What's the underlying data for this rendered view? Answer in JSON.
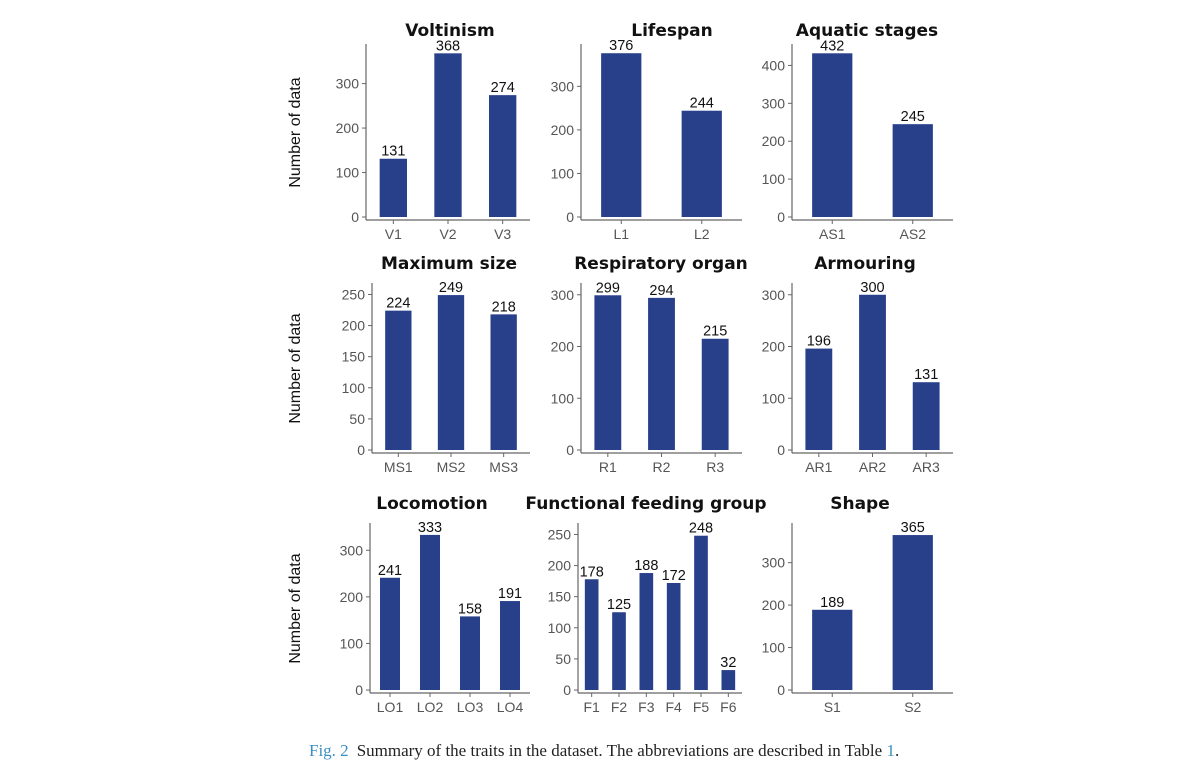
{
  "caption": {
    "label": "Fig. 2",
    "text": "Summary of the traits in the dataset. The abbreviations are described in Table ",
    "table_ref": "1",
    "end": "."
  },
  "colors": {
    "bar": "#283f8a",
    "axis": "#666666"
  },
  "ylabel": "Number of data",
  "chart_data": [
    {
      "type": "bar",
      "title": "Voltinism",
      "categories": [
        "V1",
        "V2",
        "V3"
      ],
      "values": [
        131,
        368,
        274
      ],
      "yticks": [
        0,
        100,
        200,
        300
      ],
      "ylim": [
        0,
        380
      ],
      "ylabel": "Number of data",
      "xlabel": ""
    },
    {
      "type": "bar",
      "title": "Lifespan",
      "categories": [
        "L1",
        "L2"
      ],
      "values": [
        376,
        244
      ],
      "yticks": [
        0,
        100,
        200,
        300
      ],
      "ylim": [
        0,
        388
      ],
      "ylabel": "",
      "xlabel": ""
    },
    {
      "type": "bar",
      "title": "Aquatic stages",
      "categories": [
        "AS1",
        "AS2"
      ],
      "values": [
        432,
        245
      ],
      "yticks": [
        0,
        100,
        200,
        300,
        400
      ],
      "ylim": [
        0,
        446
      ],
      "ylabel": "",
      "xlabel": ""
    },
    {
      "type": "bar",
      "title": "Maximum size",
      "categories": [
        "MS1",
        "MS2",
        "MS3"
      ],
      "values": [
        224,
        249,
        218
      ],
      "yticks": [
        0,
        50,
        100,
        150,
        200,
        250
      ],
      "ylim": [
        0,
        262
      ],
      "ylabel": "Number of data",
      "xlabel": ""
    },
    {
      "type": "bar",
      "title": "Respiratory organ",
      "categories": [
        "R1",
        "R2",
        "R3"
      ],
      "values": [
        299,
        294,
        215
      ],
      "yticks": [
        0,
        100,
        200,
        300
      ],
      "ylim": [
        0,
        315
      ],
      "ylabel": "",
      "xlabel": ""
    },
    {
      "type": "bar",
      "title": "Armouring",
      "categories": [
        "AR1",
        "AR2",
        "AR3"
      ],
      "values": [
        196,
        300,
        131
      ],
      "yticks": [
        0,
        100,
        200,
        300
      ],
      "ylim": [
        0,
        315
      ],
      "ylabel": "",
      "xlabel": ""
    },
    {
      "type": "bar",
      "title": "Locomotion",
      "categories": [
        "LO1",
        "LO2",
        "LO3",
        "LO4"
      ],
      "values": [
        241,
        333,
        158,
        191
      ],
      "yticks": [
        0,
        100,
        200,
        300
      ],
      "ylim": [
        0,
        350
      ],
      "ylabel": "Number of data",
      "xlabel": ""
    },
    {
      "type": "bar",
      "title": "Functional feeding group",
      "categories": [
        "F1",
        "F2",
        "F3",
        "F4",
        "F5",
        "F6"
      ],
      "values": [
        178,
        125,
        188,
        172,
        248,
        32
      ],
      "yticks": [
        0,
        50,
        100,
        150,
        200,
        250
      ],
      "ylim": [
        0,
        262
      ],
      "ylabel": "",
      "xlabel": ""
    },
    {
      "type": "bar",
      "title": "Shape",
      "categories": [
        "S1",
        "S2"
      ],
      "values": [
        189,
        365
      ],
      "yticks": [
        0,
        100,
        200,
        300
      ],
      "ylim": [
        0,
        384
      ],
      "ylabel": "",
      "xlabel": ""
    }
  ]
}
